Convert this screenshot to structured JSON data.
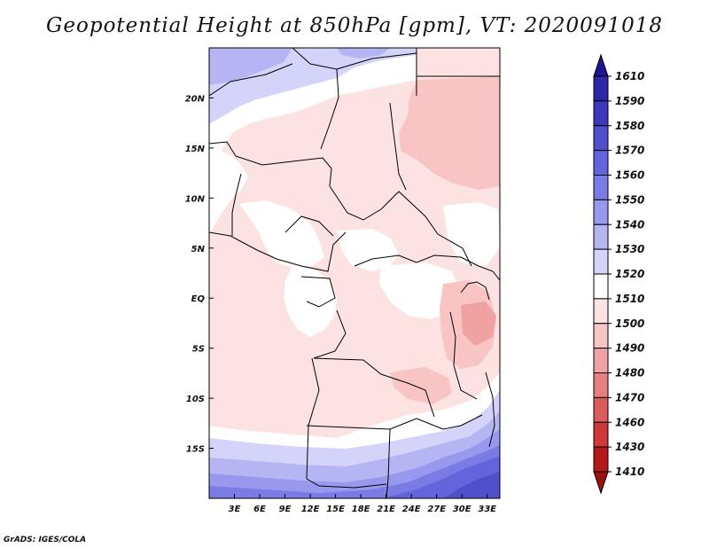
{
  "title": "Geopotential Height at 850hPa [gpm], VT: 2020091018",
  "credit": "GrADS: IGES/COLA",
  "map": {
    "lon_range": [
      0,
      34.5
    ],
    "lat_range": [
      -20,
      25
    ],
    "x_ticks": [
      {
        "lon": 3,
        "label": "3E"
      },
      {
        "lon": 6,
        "label": "6E"
      },
      {
        "lon": 9,
        "label": "9E"
      },
      {
        "lon": 12,
        "label": "12E"
      },
      {
        "lon": 15,
        "label": "15E"
      },
      {
        "lon": 18,
        "label": "18E"
      },
      {
        "lon": 21,
        "label": "21E"
      },
      {
        "lon": 24,
        "label": "24E"
      },
      {
        "lon": 27,
        "label": "27E"
      },
      {
        "lon": 30,
        "label": "30E"
      },
      {
        "lon": 33,
        "label": "33E"
      }
    ],
    "y_ticks": [
      {
        "lat": 20,
        "label": "20N"
      },
      {
        "lat": 15,
        "label": "15N"
      },
      {
        "lat": 10,
        "label": "10N"
      },
      {
        "lat": 5,
        "label": "5N"
      },
      {
        "lat": 0,
        "label": "EQ"
      },
      {
        "lat": -5,
        "label": "5S"
      },
      {
        "lat": -10,
        "label": "10S"
      },
      {
        "lat": -15,
        "label": "15S"
      }
    ]
  },
  "colorbar": {
    "labels": [
      "1610",
      "1590",
      "1580",
      "1570",
      "1560",
      "1550",
      "1540",
      "1530",
      "1520",
      "1510",
      "1500",
      "1490",
      "1480",
      "1470",
      "1460",
      "1430",
      "1410"
    ],
    "colors": [
      "#201490",
      "#2d27a8",
      "#3c39bc",
      "#5050cc",
      "#6464dc",
      "#7b7be6",
      "#9898ee",
      "#b5b5f4",
      "#d4d4fa",
      "#ffffff",
      "#fde2e2",
      "#f9c4c4",
      "#f0a2a2",
      "#e68080",
      "#dc5c5c",
      "#cf3838",
      "#b41a1a",
      "#9c1010"
    ]
  }
}
